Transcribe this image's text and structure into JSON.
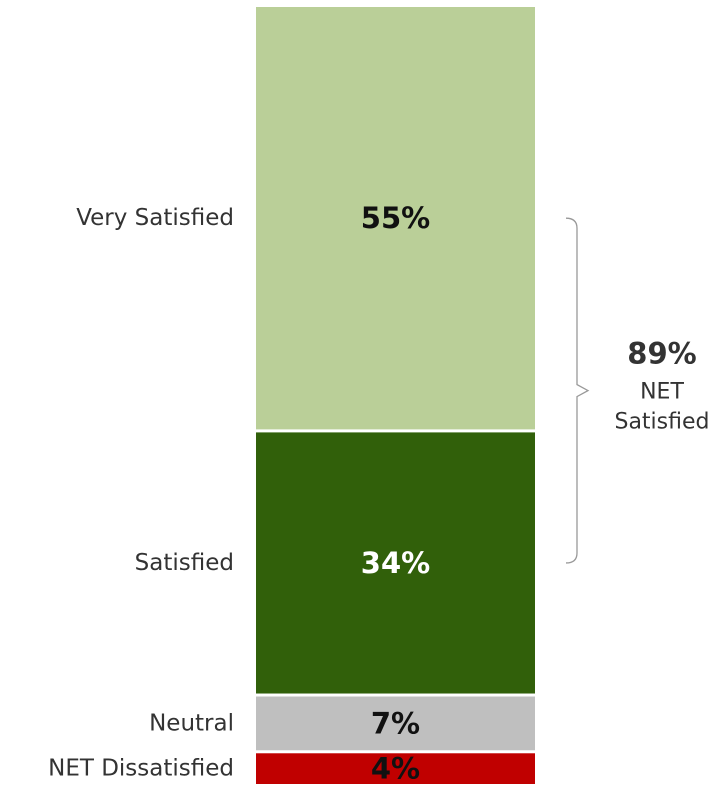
{
  "chart_data": {
    "type": "bar",
    "stacked": true,
    "orientation": "vertical",
    "categories": [
      "Very Satisfied",
      "Satisfied",
      "Neutral",
      "NET Dissatisfied"
    ],
    "values": [
      55,
      34,
      7,
      4
    ],
    "value_labels": [
      "55%",
      "34%",
      "7%",
      "4%"
    ],
    "colors": [
      "#bacf98",
      "#31600a",
      "#bfbfbf",
      "#c00000"
    ],
    "value_label_colors": [
      "#111111",
      "#ffffff",
      "#111111",
      "#111111"
    ],
    "title": "",
    "xlabel": "",
    "ylabel": "",
    "ylim": [
      0,
      100
    ],
    "grid": false,
    "legend": "none",
    "annotation": {
      "spans": [
        "Very Satisfied",
        "Satisfied"
      ],
      "value": "89%",
      "label_line1": "NET",
      "label_line2": "Satisfied"
    }
  }
}
